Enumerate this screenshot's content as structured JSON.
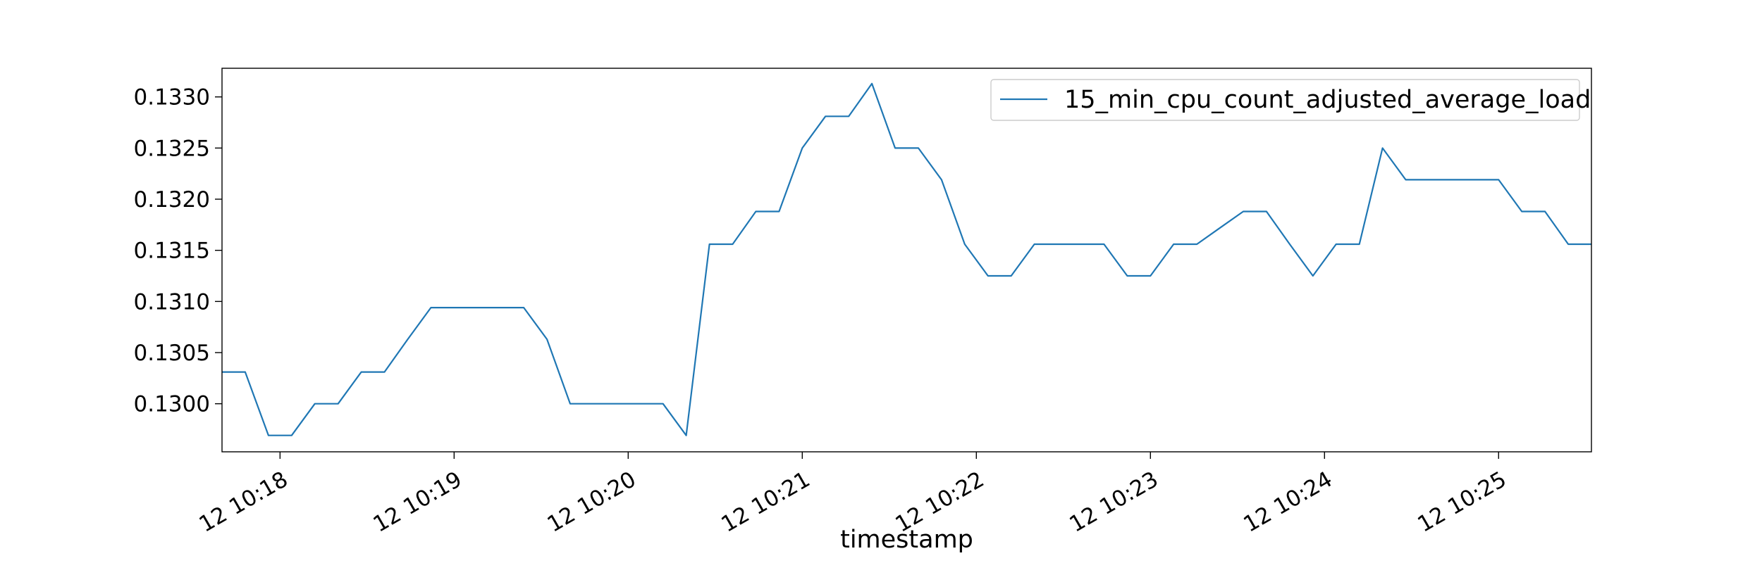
{
  "chart_data": {
    "type": "line",
    "title": "",
    "xlabel": "timestamp",
    "ylabel": "",
    "x": [
      "10:17:40",
      "10:17:48",
      "10:17:56",
      "10:18:04",
      "10:18:12",
      "10:18:20",
      "10:18:28",
      "10:18:36",
      "10:18:44",
      "10:18:52",
      "10:19:00",
      "10:19:08",
      "10:19:16",
      "10:19:24",
      "10:19:32",
      "10:19:40",
      "10:19:48",
      "10:19:56",
      "10:20:04",
      "10:20:12",
      "10:20:20",
      "10:20:28",
      "10:20:36",
      "10:20:44",
      "10:20:52",
      "10:21:00",
      "10:21:08",
      "10:21:16",
      "10:21:24",
      "10:21:32",
      "10:21:40",
      "10:21:48",
      "10:21:56",
      "10:22:04",
      "10:22:12",
      "10:22:20",
      "10:22:28",
      "10:22:36",
      "10:22:44",
      "10:22:52",
      "10:23:00",
      "10:23:08",
      "10:23:16",
      "10:23:24",
      "10:23:32",
      "10:23:40",
      "10:23:48",
      "10:23:56",
      "10:24:04",
      "10:24:12",
      "10:24:20",
      "10:24:28",
      "10:24:36",
      "10:24:44",
      "10:24:52",
      "10:25:00",
      "10:25:08",
      "10:25:16",
      "10:25:24",
      "10:25:32"
    ],
    "series": [
      {
        "name": "15_min_cpu_count_adjusted_average_load",
        "color": "#1f77b4",
        "values": [
          0.13031,
          0.13031,
          0.12969,
          0.12969,
          0.13,
          0.13,
          0.13031,
          0.13031,
          0.13063,
          0.13094,
          0.13094,
          0.13094,
          0.13094,
          0.13094,
          0.13063,
          0.13,
          0.13,
          0.13,
          0.13,
          0.13,
          0.12969,
          0.13156,
          0.13156,
          0.13188,
          0.13188,
          0.1325,
          0.13281,
          0.13281,
          0.13313,
          0.1325,
          0.1325,
          0.13219,
          0.13156,
          0.13125,
          0.13125,
          0.13156,
          0.13156,
          0.13156,
          0.13156,
          0.13125,
          0.13125,
          0.13156,
          0.13156,
          0.13172,
          0.13188,
          0.13188,
          0.13156,
          0.13125,
          0.13156,
          0.13156,
          0.1325,
          0.13219,
          0.13219,
          0.13219,
          0.13219,
          0.13219,
          0.13188,
          0.13188,
          0.13156,
          0.13156
        ]
      }
    ],
    "x_ticks": [
      "10:18",
      "10:19",
      "10:20",
      "10:21",
      "10:22",
      "10:23",
      "10:24",
      "10:25"
    ],
    "x_tick_labels": [
      "12 10:18",
      "12 10:19",
      "12 10:20",
      "12 10:21",
      "12 10:22",
      "12 10:23",
      "12 10:24",
      "12 10:25"
    ],
    "xlim": [
      "10:17:40",
      "10:25:32"
    ],
    "y_ticks": [
      0.13,
      0.1305,
      0.131,
      0.1315,
      0.132,
      0.1325,
      0.133
    ],
    "y_tick_labels": [
      "0.1300",
      "0.1305",
      "0.1310",
      "0.1315",
      "0.1320",
      "0.1325",
      "0.1330"
    ],
    "ylim": [
      0.12953,
      0.13328
    ],
    "grid": false,
    "legend_position": "top-right"
  }
}
